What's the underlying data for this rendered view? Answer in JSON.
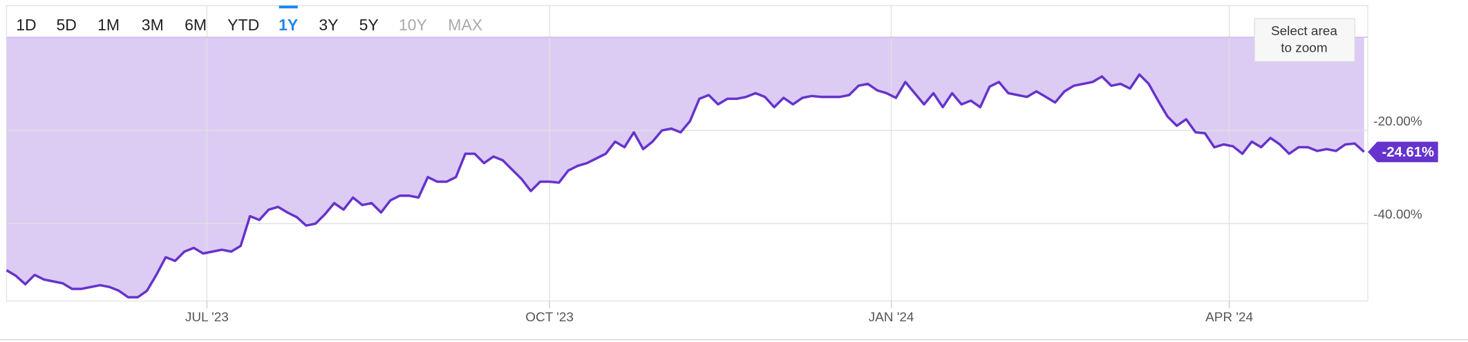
{
  "range_buttons": {
    "labels": [
      "1D",
      "5D",
      "1M",
      "3M",
      "6M",
      "YTD",
      "1Y",
      "3Y",
      "5Y",
      "10Y",
      "MAX"
    ],
    "active_index": 6,
    "disabled_indices": [
      9,
      10
    ]
  },
  "zoom_hint": [
    "Select area",
    "to zoom"
  ],
  "chart_data": {
    "type": "line",
    "color": "#6633cc",
    "fill_color": "#dccbf3",
    "fill_to": 0,
    "xlim": [
      0,
      145.4
    ],
    "xticks": [
      {
        "value": 21.4,
        "label": "JUL '23"
      },
      {
        "value": 58,
        "label": "OCT '23"
      },
      {
        "value": 94.5,
        "label": "JAN '24"
      },
      {
        "value": 130.6,
        "label": "APR '24"
      }
    ],
    "ylim": [
      -56.6,
      6.8
    ],
    "yticks": [
      {
        "value": -20,
        "label": "-20.00%"
      },
      {
        "value": -40,
        "label": "-40.00%"
      }
    ],
    "grid": true,
    "last_value_label": "-24.61%",
    "values": [
      -50,
      -51.2,
      -53,
      -51,
      -52,
      -52.4,
      -52.8,
      -54,
      -54,
      -53.6,
      -53.2,
      -53.6,
      -54.4,
      -55.8,
      -55.8,
      -54.4,
      -51,
      -47.2,
      -48,
      -46,
      -45.2,
      -46.4,
      -46,
      -45.6,
      -46,
      -44.8,
      -38.4,
      -39.2,
      -37,
      -36.4,
      -37.6,
      -38.6,
      -40.4,
      -40,
      -38,
      -35.6,
      -37,
      -34.4,
      -36,
      -35.6,
      -37.6,
      -35,
      -34,
      -34,
      -34.4,
      -30,
      -31,
      -31,
      -30,
      -25,
      -25,
      -27,
      -25.6,
      -26.4,
      -28.4,
      -30.4,
      -33,
      -31,
      -31,
      -31.2,
      -28.6,
      -27.6,
      -27,
      -26,
      -25,
      -22.4,
      -23.6,
      -20.4,
      -24,
      -22.4,
      -20,
      -19.6,
      -20.4,
      -18,
      -13.2,
      -12.4,
      -14.4,
      -13.2,
      -13.2,
      -12.8,
      -12,
      -12.8,
      -15,
      -13,
      -14.4,
      -13,
      -12.6,
      -12.8,
      -12.8,
      -12.8,
      -12.4,
      -10.4,
      -10,
      -11.4,
      -12,
      -13,
      -9.6,
      -12,
      -14.4,
      -12,
      -15,
      -12,
      -14.4,
      -13.6,
      -15,
      -10.6,
      -9.6,
      -12,
      -12.4,
      -12.8,
      -11.6,
      -12.8,
      -14,
      -11.6,
      -10.4,
      -10,
      -9.6,
      -8.4,
      -10.4,
      -10,
      -11,
      -8,
      -10,
      -13.6,
      -17,
      -19,
      -17.6,
      -20.4,
      -20.6,
      -23.6,
      -23,
      -23.4,
      -25,
      -22.4,
      -23.6,
      -21.6,
      -23,
      -25,
      -23.6,
      -23.6,
      -24.4,
      -24,
      -24.4,
      -23,
      -22.8,
      -24.61
    ]
  }
}
